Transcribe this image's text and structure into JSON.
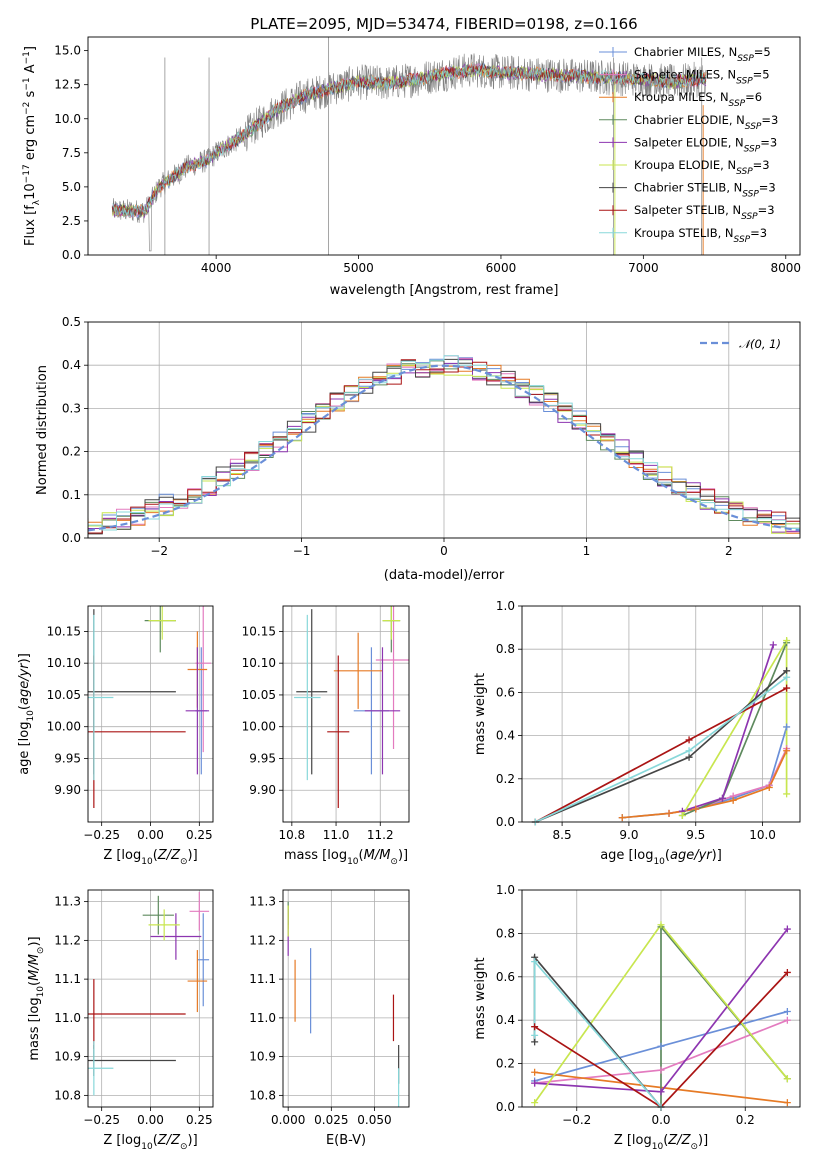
{
  "colors": {
    "Chabrier MILES": "#6a8fd8",
    "Salpeter MILES": "#e37bbf",
    "Kroupa MILES": "#e67a25",
    "Chabrier ELODIE": "#5e8a5e",
    "Salpeter ELODIE": "#8d35b0",
    "Kroupa ELODIE": "#c8e64f",
    "Chabrier STELIB": "#454545",
    "Salpeter STELIB": "#aa1414",
    "Kroupa STELIB": "#88d8da",
    "data": "#808080"
  },
  "chart_data": [
    {
      "id": "spectrum",
      "type": "line",
      "title": "PLATE=2095, MJD=53474, FIBERID=0198, z=0.166",
      "xlabel": "wavelength [Angstrom, rest frame]",
      "ylabel": "Flux [f_λ 10^-17 erg cm^-2 s^-1 A^-1]",
      "xlim": [
        3100,
        8100
      ],
      "ylim": [
        0,
        16
      ],
      "xticks": [
        4000,
        5000,
        6000,
        7000,
        8000
      ],
      "yticks": [
        0.0,
        2.5,
        5.0,
        7.5,
        10.0,
        12.5,
        15.0
      ],
      "legend": [
        {
          "name": "Chabrier MILES",
          "nssp": "5"
        },
        {
          "name": "Salpeter MILES",
          "nssp": "5"
        },
        {
          "name": "Kroupa MILES",
          "nssp": "6"
        },
        {
          "name": "Chabrier ELODIE",
          "nssp": "3"
        },
        {
          "name": "Salpeter ELODIE",
          "nssp": "3"
        },
        {
          "name": "Kroupa ELODIE",
          "nssp": "3"
        },
        {
          "name": "Chabrier STELIB",
          "nssp": "3"
        },
        {
          "name": "Salpeter STELIB",
          "nssp": "3"
        },
        {
          "name": "Kroupa STELIB",
          "nssp": "3"
        }
      ],
      "legend_position": "top-right",
      "grid": false,
      "continuum": [
        [
          3270,
          3.3
        ],
        [
          3500,
          3.2
        ],
        [
          3600,
          5.0
        ],
        [
          3800,
          6.5
        ],
        [
          3950,
          7.0
        ],
        [
          4000,
          7.5
        ],
        [
          4200,
          8.8
        ],
        [
          4400,
          10.5
        ],
        [
          4600,
          11.6
        ],
        [
          4800,
          12.2
        ],
        [
          5000,
          12.7
        ],
        [
          5200,
          12.6
        ],
        [
          5400,
          12.9
        ],
        [
          5600,
          13.3
        ],
        [
          5800,
          13.6
        ],
        [
          6000,
          13.4
        ],
        [
          6200,
          13.3
        ],
        [
          6400,
          13.2
        ],
        [
          6600,
          13.1
        ],
        [
          6800,
          13.0
        ],
        [
          7000,
          12.9
        ],
        [
          7200,
          12.7
        ],
        [
          7400,
          12.9
        ]
      ]
    },
    {
      "id": "residuals",
      "type": "histogram",
      "xlabel": "(data-model)/error",
      "ylabel": "Normed distribution",
      "xlim": [
        -2.5,
        2.5
      ],
      "ylim": [
        0,
        0.5
      ],
      "xticks": [
        -2,
        -1,
        0,
        1,
        2
      ],
      "yticks": [
        0.0,
        0.1,
        0.2,
        0.3,
        0.4,
        0.5
      ],
      "grid": true,
      "reference_curve": "N(0,1)",
      "legend_position": "top-right"
    },
    {
      "id": "age_vs_Z",
      "type": "scatter",
      "xlabel": "Z [log10(Z/Z_sun)]",
      "ylabel": "age  [log10(age/yr)]",
      "xlim": [
        -0.32,
        0.32
      ],
      "ylim": [
        9.85,
        10.19
      ],
      "xticks": [
        -0.25,
        0.0,
        0.25
      ],
      "yticks": [
        9.9,
        9.95,
        10.0,
        10.05,
        10.1,
        10.15
      ],
      "grid": true,
      "points": [
        {
          "series": "Chabrier MILES",
          "x": 0.26,
          "y": 10.025,
          "xerr": 0.03,
          "yerr": 0.1
        },
        {
          "series": "Salpeter MILES",
          "x": 0.27,
          "y": 10.1,
          "xerr": 0.04,
          "yerr": 0.14
        },
        {
          "series": "Kroupa MILES",
          "x": 0.24,
          "y": 10.09,
          "xerr": 0.05,
          "yerr": 0.06
        },
        {
          "series": "Chabrier ELODIE",
          "x": 0.05,
          "y": 10.167,
          "xerr": 0.08,
          "yerr": 0.05
        },
        {
          "series": "Salpeter ELODIE",
          "x": 0.24,
          "y": 10.025,
          "xerr": 0.06,
          "yerr": 0.1
        },
        {
          "series": "Kroupa ELODIE",
          "x": 0.06,
          "y": 10.167,
          "xerr": 0.07,
          "yerr": 0.03
        },
        {
          "series": "Chabrier STELIB",
          "x": -0.29,
          "y": 10.055,
          "xerr": 0.42,
          "yerr": 0.13
        },
        {
          "series": "Salpeter STELIB",
          "x": -0.29,
          "y": 9.992,
          "xerr": 0.47,
          "yerr": 0.12
        },
        {
          "series": "Kroupa STELIB",
          "x": -0.29,
          "y": 10.046,
          "xerr": 0.1,
          "yerr": 0.13
        }
      ]
    },
    {
      "id": "age_vs_mass",
      "type": "scatter",
      "xlabel": "mass [log10(M/M_sun)]",
      "ylabel": "",
      "xlim": [
        10.76,
        11.33
      ],
      "ylim": [
        9.85,
        10.19
      ],
      "xticks": [
        10.8,
        11.0,
        11.2
      ],
      "yticks": [
        9.9,
        9.95,
        10.0,
        10.05,
        10.1,
        10.15
      ],
      "grid": true,
      "points": [
        {
          "series": "Chabrier MILES",
          "x": 11.16,
          "y": 10.025,
          "xerr": 0.08,
          "yerr": 0.1
        },
        {
          "series": "Salpeter MILES",
          "x": 11.26,
          "y": 10.105,
          "xerr": 0.08,
          "yerr": 0.14
        },
        {
          "series": "Kroupa MILES",
          "x": 11.1,
          "y": 10.088,
          "xerr": 0.11,
          "yerr": 0.06
        },
        {
          "series": "Chabrier ELODIE",
          "x": 11.25,
          "y": 10.167,
          "xerr": 0.04,
          "yerr": 0.05
        },
        {
          "series": "Salpeter ELODIE",
          "x": 11.21,
          "y": 10.025,
          "xerr": 0.08,
          "yerr": 0.1
        },
        {
          "series": "Kroupa ELODIE",
          "x": 11.25,
          "y": 10.167,
          "xerr": 0.04,
          "yerr": 0.03
        },
        {
          "series": "Chabrier STELIB",
          "x": 10.89,
          "y": 10.055,
          "xerr": 0.07,
          "yerr": 0.13
        },
        {
          "series": "Salpeter STELIB",
          "x": 11.01,
          "y": 9.992,
          "xerr": 0.05,
          "yerr": 0.12
        },
        {
          "series": "Kroupa STELIB",
          "x": 10.87,
          "y": 10.046,
          "xerr": 0.06,
          "yerr": 0.13
        }
      ]
    },
    {
      "id": "mass_weight_vs_age",
      "type": "line",
      "xlabel": "age  [log10(age/yr)]",
      "ylabel": "mass weight",
      "xlim": [
        8.2,
        10.28
      ],
      "ylim": [
        0,
        1
      ],
      "xticks": [
        8.5,
        9.0,
        9.5,
        10.0
      ],
      "yticks": [
        0.0,
        0.2,
        0.4,
        0.6,
        0.8,
        1.0
      ],
      "grid": true,
      "series": [
        {
          "name": "Chabrier MILES",
          "x": [
            8.95,
            9.3,
            9.5,
            9.78,
            10.05,
            10.18
          ],
          "y": [
            0.02,
            0.04,
            0.06,
            0.11,
            0.17,
            0.44
          ]
        },
        {
          "name": "Salpeter MILES",
          "x": [
            9.3,
            9.5,
            9.78,
            10.05,
            10.18
          ],
          "y": [
            0.04,
            0.06,
            0.12,
            0.17,
            0.34
          ]
        },
        {
          "name": "Kroupa MILES",
          "x": [
            8.95,
            9.3,
            9.5,
            9.78,
            10.05,
            10.18
          ],
          "y": [
            0.02,
            0.04,
            0.06,
            0.1,
            0.16,
            0.33
          ]
        },
        {
          "name": "Chabrier ELODIE",
          "x": [
            9.4,
            9.7,
            10.18
          ],
          "y": [
            0.03,
            0.11,
            0.83
          ]
        },
        {
          "name": "Salpeter ELODIE",
          "x": [
            9.4,
            9.7,
            10.08
          ],
          "y": [
            0.05,
            0.11,
            0.82
          ]
        },
        {
          "name": "Kroupa ELODIE",
          "x": [
            9.4,
            10.18,
            10.18
          ],
          "y": [
            0.03,
            0.84,
            0.13
          ]
        },
        {
          "name": "Chabrier STELIB",
          "x": [
            8.3,
            9.45,
            10.18
          ],
          "y": [
            0.0,
            0.3,
            0.7
          ]
        },
        {
          "name": "Salpeter STELIB",
          "x": [
            8.3,
            9.45,
            10.18
          ],
          "y": [
            0.0,
            0.38,
            0.62
          ]
        },
        {
          "name": "Kroupa STELIB",
          "x": [
            8.3,
            9.45,
            10.18
          ],
          "y": [
            0.0,
            0.33,
            0.67
          ]
        }
      ]
    },
    {
      "id": "mass_vs_Z",
      "type": "scatter",
      "xlabel": "Z [log10(Z/Z_sun)]",
      "ylabel": "mass [log10(M/M_sun)]",
      "xlim": [
        -0.32,
        0.32
      ],
      "ylim": [
        10.77,
        11.33
      ],
      "xticks": [
        -0.25,
        0.0,
        0.25
      ],
      "yticks": [
        10.8,
        10.9,
        11.0,
        11.1,
        11.2,
        11.3
      ],
      "grid": true,
      "points": [
        {
          "series": "Chabrier MILES",
          "x": 0.27,
          "y": 11.15,
          "xerr": 0.03,
          "yerr": 0.12
        },
        {
          "series": "Salpeter MILES",
          "x": 0.25,
          "y": 11.275,
          "xerr": 0.05,
          "yerr": 0.05
        },
        {
          "series": "Kroupa MILES",
          "x": 0.24,
          "y": 11.095,
          "xerr": 0.05,
          "yerr": 0.08
        },
        {
          "series": "Chabrier ELODIE",
          "x": 0.04,
          "y": 11.265,
          "xerr": 0.08,
          "yerr": 0.05
        },
        {
          "series": "Salpeter ELODIE",
          "x": 0.13,
          "y": 11.21,
          "xerr": 0.13,
          "yerr": 0.06
        },
        {
          "series": "Kroupa ELODIE",
          "x": 0.07,
          "y": 11.24,
          "xerr": 0.08,
          "yerr": 0.04
        },
        {
          "series": "Chabrier STELIB",
          "x": -0.29,
          "y": 10.89,
          "xerr": 0.42,
          "yerr": 0.04
        },
        {
          "series": "Salpeter STELIB",
          "x": -0.29,
          "y": 11.01,
          "xerr": 0.47,
          "yerr": 0.09
        },
        {
          "series": "Kroupa STELIB",
          "x": -0.29,
          "y": 10.87,
          "xerr": 0.1,
          "yerr": 0.07
        }
      ]
    },
    {
      "id": "mass_vs_ebv",
      "type": "scatter",
      "xlabel": "E(B-V)",
      "ylabel": "",
      "xlim": [
        -0.003,
        0.07
      ],
      "ylim": [
        10.77,
        11.33
      ],
      "xticks": [
        0.0,
        0.025,
        0.05
      ],
      "yticks": [
        10.8,
        10.9,
        11.0,
        11.1,
        11.2,
        11.3
      ],
      "grid": true,
      "points": [
        {
          "series": "Chabrier MILES",
          "x": 0.013,
          "y": 11.07,
          "xerr": 0,
          "yerr": 0.11
        },
        {
          "series": "Salpeter MILES",
          "x": 0.0,
          "y": 11.26,
          "xerr": 0,
          "yerr": 0.03
        },
        {
          "series": "Kroupa MILES",
          "x": 0.004,
          "y": 11.07,
          "xerr": 0,
          "yerr": 0.08
        },
        {
          "series": "Chabrier ELODIE",
          "x": 0.0,
          "y": 11.27,
          "xerr": 0,
          "yerr": 0.03
        },
        {
          "series": "Salpeter ELODIE",
          "x": 0.0,
          "y": 11.22,
          "xerr": 0,
          "yerr": 0.06
        },
        {
          "series": "Kroupa ELODIE",
          "x": 0.0,
          "y": 11.25,
          "xerr": 0,
          "yerr": 0.04
        },
        {
          "series": "Chabrier STELIB",
          "x": 0.064,
          "y": 10.88,
          "xerr": 0,
          "yerr": 0.05
        },
        {
          "series": "Salpeter STELIB",
          "x": 0.061,
          "y": 11.0,
          "xerr": 0,
          "yerr": 0.06
        },
        {
          "series": "Kroupa STELIB",
          "x": 0.064,
          "y": 10.82,
          "xerr": 0,
          "yerr": 0.05
        }
      ]
    },
    {
      "id": "mass_weight_vs_Z",
      "type": "line",
      "xlabel": "Z [log10(Z/Z_sun)]",
      "ylabel": "mass weight",
      "xlim": [
        -0.33,
        0.33
      ],
      "ylim": [
        0,
        1
      ],
      "xticks": [
        -0.2,
        0.0,
        0.2
      ],
      "yticks": [
        0.0,
        0.2,
        0.4,
        0.6,
        0.8,
        1.0
      ],
      "grid": true,
      "series": [
        {
          "name": "Chabrier MILES",
          "x": [
            -0.3,
            0.0,
            0.3
          ],
          "y": [
            0.12,
            0.28,
            0.44
          ]
        },
        {
          "name": "Salpeter MILES",
          "x": [
            -0.3,
            0.0,
            0.3
          ],
          "y": [
            0.11,
            0.17,
            0.4
          ]
        },
        {
          "name": "Kroupa MILES",
          "x": [
            -0.3,
            0.3
          ],
          "y": [
            0.16,
            0.02
          ]
        },
        {
          "name": "Chabrier ELODIE",
          "x": [
            0.0,
            0.0,
            0.3
          ],
          "y": [
            0.0,
            0.83,
            0.13
          ]
        },
        {
          "name": "Salpeter ELODIE",
          "x": [
            -0.3,
            0.0,
            0.3
          ],
          "y": [
            0.11,
            0.07,
            0.82
          ]
        },
        {
          "name": "Kroupa ELODIE",
          "x": [
            -0.3,
            0.0,
            0.3
          ],
          "y": [
            0.02,
            0.84,
            0.13
          ]
        },
        {
          "name": "Chabrier STELIB",
          "x": [
            -0.3,
            -0.3,
            0.0
          ],
          "y": [
            0.3,
            0.69,
            0.0
          ]
        },
        {
          "name": "Salpeter STELIB",
          "x": [
            -0.3,
            0.0,
            0.3
          ],
          "y": [
            0.37,
            0.0,
            0.62
          ]
        },
        {
          "name": "Kroupa STELIB",
          "x": [
            -0.3,
            -0.3,
            0.0
          ],
          "y": [
            0.33,
            0.67,
            0.0
          ]
        }
      ]
    }
  ]
}
